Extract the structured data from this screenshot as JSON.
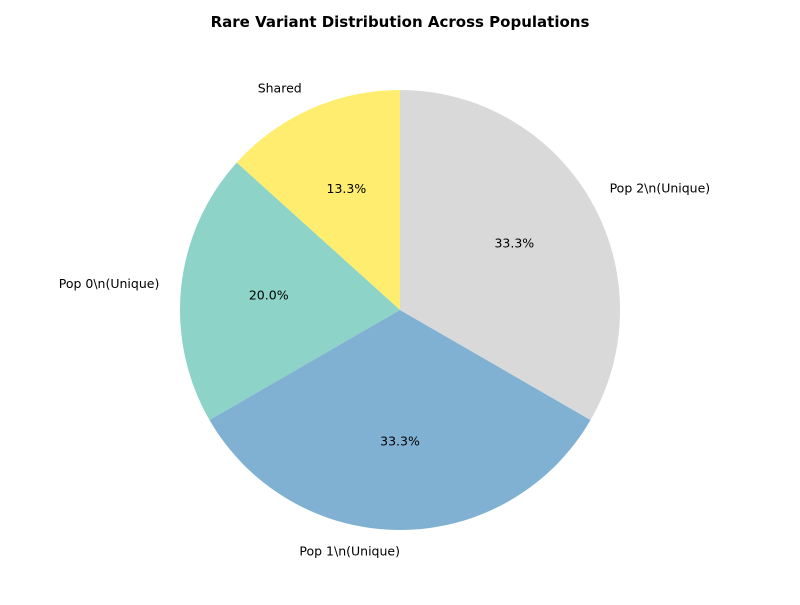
{
  "chart_data": {
    "type": "pie",
    "title": "Rare Variant Distribution Across Populations",
    "start_angle_deg": 90,
    "direction": "counterclockwise",
    "slices": [
      {
        "label": "Shared",
        "value": 13.3,
        "pct_text": "13.3%",
        "color": "#ffed6f"
      },
      {
        "label": "Pop 0\\n(Unique)",
        "value": 20.0,
        "pct_text": "20.0%",
        "color": "#8dd3c7"
      },
      {
        "label": "Pop 1\\n(Unique)",
        "value": 33.3,
        "pct_text": "33.3%",
        "color": "#80b1d3"
      },
      {
        "label": "Pop 2\\n(Unique)",
        "value": 33.3,
        "pct_text": "33.3%",
        "color": "#d9d9d9"
      }
    ]
  }
}
